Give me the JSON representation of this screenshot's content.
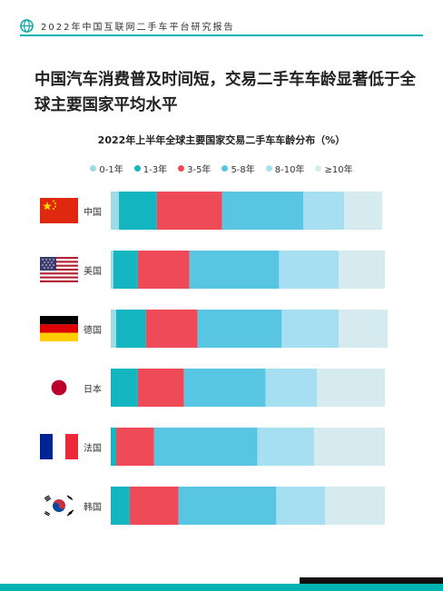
{
  "header": {
    "title": "2022年中国互联网二手车平台研究报告",
    "icon": "globe-icon"
  },
  "headline": "中国汽车消费普及时间短，交易二手车车龄显著低于全球主要国家平均水平",
  "chart_data": {
    "type": "bar",
    "orientation": "horizontal",
    "stacked": true,
    "title": "2022年上半年全球主要国家交易二手车车龄分布（%）",
    "xlabel": "",
    "ylabel": "",
    "xlim": [
      0,
      100
    ],
    "grid": false,
    "legend_position": "top",
    "categories": [
      "中国",
      "美国",
      "德国",
      "日本",
      "法国",
      "韩国"
    ],
    "series": [
      {
        "name": "0-1年",
        "color": "#9fdbe6",
        "values": [
          3,
          1,
          2,
          0,
          0,
          0
        ]
      },
      {
        "name": "1-3年",
        "color": "#12b5c0",
        "values": [
          14,
          9,
          11,
          10,
          2,
          7
        ]
      },
      {
        "name": "3-5年",
        "color": "#ef4a57",
        "values": [
          24,
          19,
          19,
          17,
          14,
          18
        ]
      },
      {
        "name": "5-8年",
        "color": "#58c6e3",
        "values": [
          30,
          33,
          31,
          30,
          38,
          36
        ]
      },
      {
        "name": "8-10年",
        "color": "#a6dff2",
        "values": [
          15,
          22,
          21,
          19,
          21,
          18
        ]
      },
      {
        "name": "≥10年",
        "color": "#d5ebf0",
        "values": [
          14,
          17,
          18,
          25,
          26,
          22
        ]
      }
    ],
    "flags": [
      "china-flag",
      "usa-flag",
      "germany-flag",
      "japan-flag",
      "france-flag",
      "korea-flag"
    ]
  }
}
